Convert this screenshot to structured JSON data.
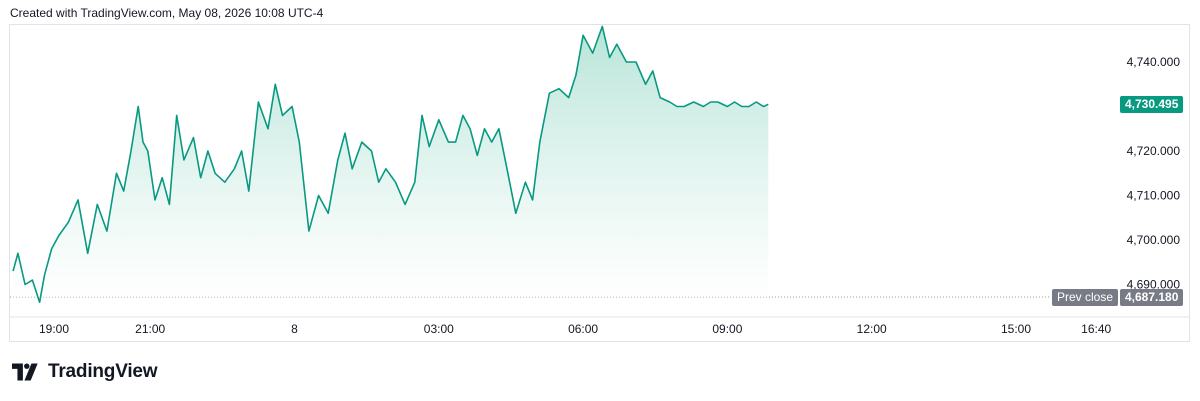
{
  "header": {
    "text": "Created with TradingView.com, May 08, 2026 10:08 UTC-4"
  },
  "brand": {
    "name": "TradingView"
  },
  "colors": {
    "line": "#089981",
    "fill_top": "#b3e3d6",
    "fill_bottom": "#ffffff",
    "prev_close_bg": "#787b86",
    "last_price_bg": "#089981"
  },
  "chart_data": {
    "type": "area",
    "x_tick_labels": [
      "19:00",
      "21:00",
      "8",
      "03:00",
      "06:00",
      "09:00",
      "12:00",
      "15:00",
      "16:40"
    ],
    "x_ticks_hours": [
      0,
      2,
      5,
      8,
      11,
      14,
      17,
      20,
      21.6667
    ],
    "y_tick_labels": [
      "4,740.000",
      "4,720.000",
      "4,710.000",
      "4,700.000",
      "4,690.000"
    ],
    "y_ticks": [
      4740,
      4720,
      4710,
      4700,
      4690
    ],
    "ylim": [
      4686,
      4748
    ],
    "xlim_hours": [
      -0.85,
      22.0
    ],
    "last_price": {
      "label": "4,730.495",
      "value": 4730.495
    },
    "prev_close": {
      "label": "Prev close",
      "value_label": "4,687.180",
      "value": 4687.18
    },
    "series": [
      {
        "x_hours": [
          -0.85,
          -0.75,
          -0.6,
          -0.45,
          -0.3,
          -0.2,
          -0.05,
          0.1,
          0.3,
          0.5,
          0.7,
          0.9,
          1.1,
          1.3,
          1.45,
          1.6,
          1.75,
          1.85,
          1.95,
          2.1,
          2.25,
          2.4,
          2.55,
          2.7,
          2.9,
          3.05,
          3.2,
          3.35,
          3.55,
          3.75,
          3.9,
          4.05,
          4.25,
          4.45,
          4.6,
          4.75,
          4.95,
          5.1,
          5.3,
          5.5,
          5.7,
          5.9,
          6.05,
          6.2,
          6.4,
          6.6,
          6.75,
          6.9,
          7.1,
          7.3,
          7.5,
          7.65,
          7.8,
          8.0,
          8.2,
          8.35,
          8.5,
          8.65,
          8.8,
          8.95,
          9.1,
          9.25,
          9.4,
          9.6,
          9.8,
          9.95,
          10.1,
          10.3,
          10.5,
          10.7,
          10.85,
          11.0,
          11.2,
          11.4,
          11.55,
          11.7,
          11.9,
          12.1,
          12.3,
          12.45,
          12.6,
          12.8,
          12.95,
          13.1,
          13.3,
          13.5,
          13.65,
          13.8,
          14.0,
          14.15,
          14.3,
          14.45,
          14.6,
          14.75,
          14.85
        ],
        "values": [
          4693,
          4697,
          4690,
          4691,
          4686,
          4692,
          4698,
          4701,
          4704,
          4709,
          4697,
          4708,
          4702,
          4715,
          4711,
          4720,
          4730,
          4722,
          4720,
          4709,
          4714,
          4708,
          4728,
          4718,
          4723,
          4714,
          4720,
          4715,
          4713,
          4716,
          4720,
          4711,
          4731,
          4725,
          4735,
          4728,
          4730,
          4722,
          4702,
          4710,
          4706,
          4718,
          4724,
          4716,
          4722,
          4720,
          4713,
          4716,
          4713,
          4708,
          4713,
          4728,
          4721,
          4727,
          4722,
          4722,
          4728,
          4725,
          4719,
          4725,
          4722,
          4725,
          4717,
          4706,
          4713,
          4709,
          4722,
          4733,
          4734,
          4732,
          4737,
          4746,
          4742,
          4748,
          4741,
          4744,
          4740,
          4740,
          4735,
          4738,
          4732,
          4731,
          4730,
          4730,
          4731,
          4730,
          4731,
          4731,
          4730,
          4731,
          4730,
          4730,
          4731,
          4730,
          4730.495
        ],
        "name": ""
      }
    ]
  }
}
